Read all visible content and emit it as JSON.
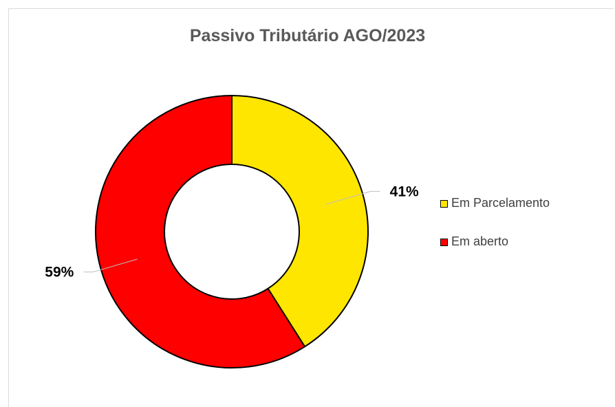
{
  "chart_data": {
    "type": "pie",
    "variant": "donut",
    "title": "Passivo Tributário AGO/2023",
    "series": [
      {
        "name": "Em Parcelamento",
        "value": 41,
        "label": "41%",
        "color": "#FFE600"
      },
      {
        "name": "Em aberto",
        "value": 59,
        "label": "59%",
        "color": "#FF0000"
      }
    ],
    "legend_position": "right"
  }
}
